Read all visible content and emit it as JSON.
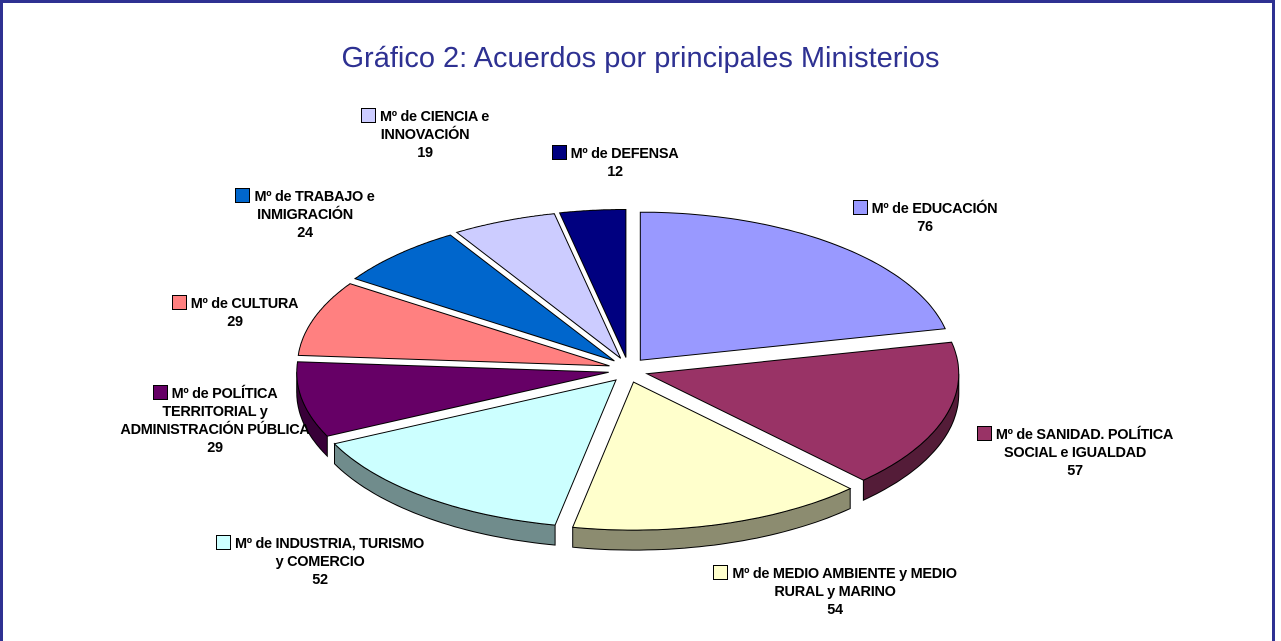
{
  "chart_data": {
    "type": "pie",
    "title": "Gráfico 2: Acuerdos por principales Ministerios",
    "categories": [
      "Mº de EDUCACIÓN",
      "Mº de SANIDAD. POLÍTICA SOCIAL e IGUALDAD",
      "Mº de MEDIO AMBIENTE y MEDIO RURAL y MARINO",
      "Mº de INDUSTRIA, TURISMO y COMERCIO",
      "Mº de POLÍTICA TERRITORIAL y ADMINISTRACIÓN PÚBLICA",
      "Mº de CULTURA",
      "Mº de TRABAJO e INMIGRACIÓN",
      "Mº de CIENCIA e INNOVACIÓN",
      "Mº de DEFENSA"
    ],
    "values": [
      76,
      57,
      54,
      52,
      29,
      29,
      24,
      19,
      12
    ],
    "colors": [
      "#9999ff",
      "#993366",
      "#ffffcc",
      "#ccffff",
      "#660066",
      "#ff8080",
      "#0066cc",
      "#ccccff",
      "#000080"
    ]
  }
}
